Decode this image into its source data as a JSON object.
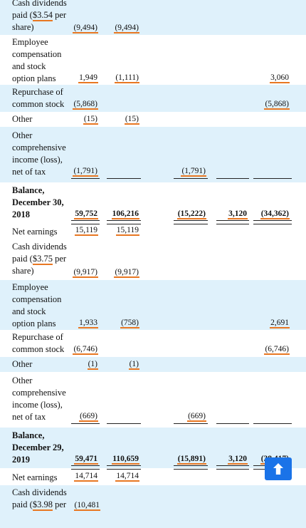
{
  "rows": [
    {
      "label_lines": [
        "Cash dividends",
        "paid ($3.54 per",
        "share)"
      ],
      "c1": "(9,494)",
      "c2": "(9,494)",
      "c3": "",
      "c4": "",
      "c5": ""
    },
    {
      "label_lines": [
        "Employee",
        "compensation",
        "and stock",
        "option plans"
      ],
      "c1": "1,949",
      "c2": "(1,111)",
      "c3": "",
      "c4": "",
      "c5": "3,060"
    },
    {
      "label_lines": [
        "Repurchase of",
        "common stock"
      ],
      "c1": "(5,868)",
      "c2": "",
      "c3": "",
      "c4": "",
      "c5": "(5,868)"
    },
    {
      "label_lines": [
        "Other"
      ],
      "c1": "(15)",
      "c2": "(15)",
      "c3": "",
      "c4": "",
      "c5": ""
    },
    {
      "label_lines": [
        "Other",
        "comprehensive",
        "income (loss),",
        "net of tax"
      ],
      "c1": "(1,791)",
      "c2": "",
      "c3": "(1,791)",
      "c4": "",
      "c5": ""
    },
    {
      "label_lines": [
        "Balance,",
        "December 30,",
        "2018"
      ],
      "c1": "59,752",
      "c2": "106,216",
      "c3": "(15,222)",
      "c4": "3,120",
      "c5": "(34,362)"
    },
    {
      "label_lines": [
        "Net earnings"
      ],
      "c1": "15,119",
      "c2": "15,119",
      "c3": "",
      "c4": "",
      "c5": ""
    },
    {
      "label_lines": [
        "Cash dividends",
        "paid ($3.75 per",
        "share)"
      ],
      "c1": "(9,917)",
      "c2": "(9,917)",
      "c3": "",
      "c4": "",
      "c5": ""
    },
    {
      "label_lines": [
        "Employee",
        "compensation",
        "and stock",
        "option plans"
      ],
      "c1": "1,933",
      "c2": "(758)",
      "c3": "",
      "c4": "",
      "c5": "2,691"
    },
    {
      "label_lines": [
        "Repurchase of",
        "common stock"
      ],
      "c1": "(6,746)",
      "c2": "",
      "c3": "",
      "c4": "",
      "c5": "(6,746)"
    },
    {
      "label_lines": [
        "Other"
      ],
      "c1": "(1)",
      "c2": "(1)",
      "c3": "",
      "c4": "",
      "c5": ""
    },
    {
      "label_lines": [
        "Other",
        "comprehensive",
        "income (loss),",
        "net of tax"
      ],
      "c1": "(669)",
      "c2": "",
      "c3": "(669)",
      "c4": "",
      "c5": ""
    },
    {
      "label_lines": [
        "Balance,",
        "December 29,",
        "2019"
      ],
      "c1": "59,471",
      "c2": "110,659",
      "c3": "(15,891)",
      "c4": "3,120",
      "c5": "(38,417)"
    },
    {
      "label_lines": [
        "Net earnings"
      ],
      "c1": "14,714",
      "c2": "14,714",
      "c3": "",
      "c4": "",
      "c5": ""
    },
    {
      "label_lines": [
        "Cash dividends",
        "paid ($3.98 per"
      ],
      "c1": "(10,481",
      "c2": "",
      "c3": "",
      "c4": "",
      "c5": ""
    }
  ],
  "scroll_top_icon": "arrow-up-icon",
  "colors": {
    "highlight": "#e87722",
    "shade": "#dff1fb",
    "button": "#1a73e8"
  }
}
